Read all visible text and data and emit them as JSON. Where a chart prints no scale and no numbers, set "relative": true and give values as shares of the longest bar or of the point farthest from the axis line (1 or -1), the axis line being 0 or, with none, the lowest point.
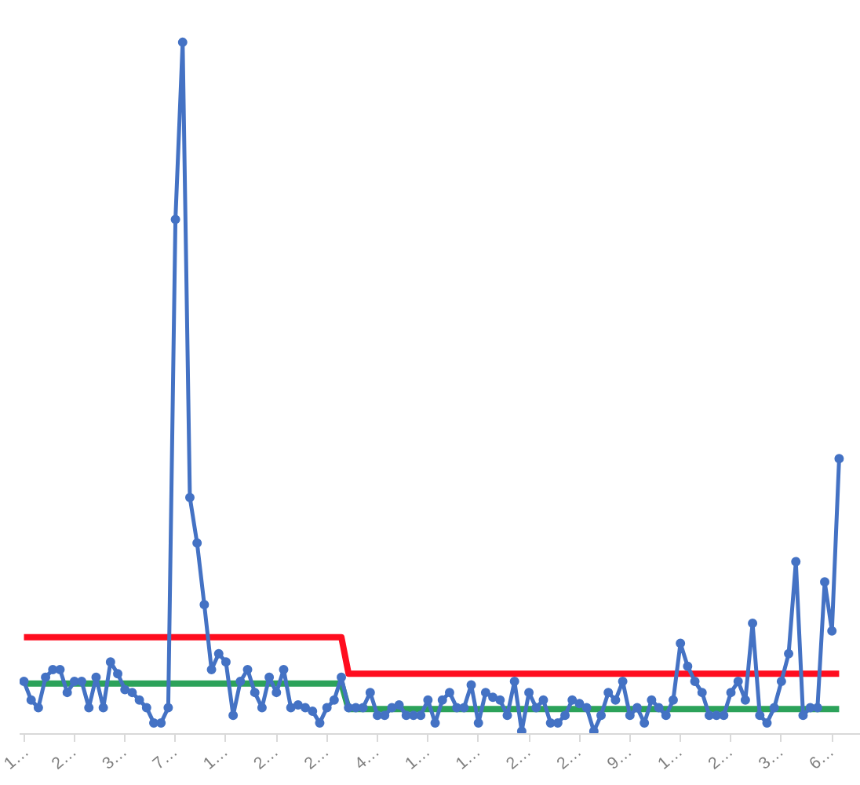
{
  "chart_data": {
    "type": "line",
    "relative": true,
    "grid": false,
    "categories": [
      "1…",
      null,
      null,
      null,
      null,
      null,
      null,
      "2…",
      null,
      null,
      null,
      null,
      null,
      null,
      "3…",
      null,
      null,
      null,
      null,
      null,
      null,
      "7…",
      null,
      null,
      null,
      null,
      null,
      null,
      "1…",
      null,
      null,
      null,
      null,
      null,
      null,
      "2…",
      null,
      null,
      null,
      null,
      null,
      null,
      "2…",
      null,
      null,
      null,
      null,
      null,
      null,
      "4…",
      null,
      null,
      null,
      null,
      null,
      null,
      "1…",
      null,
      null,
      null,
      null,
      null,
      null,
      "1…",
      null,
      null,
      null,
      null,
      null,
      null,
      "2…",
      null,
      null,
      null,
      null,
      null,
      null,
      "2…",
      null,
      null,
      null,
      null,
      null,
      null,
      "9…",
      null,
      null,
      null,
      null,
      null,
      null,
      "1…",
      null,
      null,
      null,
      null,
      null,
      null,
      "2…",
      null,
      null,
      null,
      null,
      null,
      null,
      "3…",
      null,
      null,
      null,
      null,
      null,
      null,
      "6…",
      null
    ],
    "series": [
      {
        "color": "#ff0d1f",
        "marker": "none",
        "values": [
          0.14,
          0.14,
          0.14,
          0.14,
          0.14,
          0.14,
          0.14,
          0.14,
          0.14,
          0.14,
          0.14,
          0.14,
          0.14,
          0.14,
          0.14,
          0.14,
          0.14,
          0.14,
          0.14,
          0.14,
          0.14,
          0.14,
          0.14,
          0.14,
          0.14,
          0.14,
          0.14,
          0.14,
          0.14,
          0.14,
          0.14,
          0.14,
          0.14,
          0.14,
          0.14,
          0.14,
          0.14,
          0.14,
          0.14,
          0.14,
          0.14,
          0.14,
          0.14,
          0.14,
          0.14,
          0.087,
          0.087,
          0.087,
          0.087,
          0.087,
          0.087,
          0.087,
          0.087,
          0.087,
          0.087,
          0.087,
          0.087,
          0.087,
          0.087,
          0.087,
          0.087,
          0.087,
          0.087,
          0.087,
          0.087,
          0.087,
          0.087,
          0.087,
          0.087,
          0.087,
          0.087,
          0.087,
          0.087,
          0.087,
          0.087,
          0.087,
          0.087,
          0.087,
          0.087,
          0.087,
          0.087,
          0.087,
          0.087,
          0.087,
          0.087,
          0.087,
          0.087,
          0.087,
          0.087,
          0.087,
          0.087,
          0.087,
          0.087,
          0.087,
          0.087,
          0.087,
          0.087,
          0.087,
          0.087,
          0.087,
          0.087,
          0.087,
          0.087,
          0.087,
          0.087,
          0.087,
          0.087,
          0.087,
          0.087,
          0.087,
          0.087,
          0.087,
          0.087,
          0.087
        ]
      },
      {
        "color": "#2ca25a",
        "marker": "none",
        "values": [
          0.073,
          0.073,
          0.073,
          0.073,
          0.073,
          0.073,
          0.073,
          0.073,
          0.073,
          0.073,
          0.073,
          0.073,
          0.073,
          0.073,
          0.073,
          0.073,
          0.073,
          0.073,
          0.073,
          0.073,
          0.073,
          0.073,
          0.073,
          0.073,
          0.073,
          0.073,
          0.073,
          0.073,
          0.073,
          0.073,
          0.073,
          0.073,
          0.073,
          0.073,
          0.073,
          0.073,
          0.073,
          0.073,
          0.073,
          0.073,
          0.073,
          0.073,
          0.073,
          0.073,
          0.073,
          0.036,
          0.036,
          0.036,
          0.036,
          0.036,
          0.036,
          0.036,
          0.036,
          0.036,
          0.036,
          0.036,
          0.036,
          0.036,
          0.036,
          0.036,
          0.036,
          0.036,
          0.036,
          0.036,
          0.036,
          0.036,
          0.036,
          0.036,
          0.036,
          0.036,
          0.036,
          0.036,
          0.036,
          0.036,
          0.036,
          0.036,
          0.036,
          0.036,
          0.036,
          0.036,
          0.036,
          0.036,
          0.036,
          0.036,
          0.036,
          0.036,
          0.036,
          0.036,
          0.036,
          0.036,
          0.036,
          0.036,
          0.036,
          0.036,
          0.036,
          0.036,
          0.036,
          0.036,
          0.036,
          0.036,
          0.036,
          0.036,
          0.036,
          0.036,
          0.036,
          0.036,
          0.036,
          0.036,
          0.036,
          0.036,
          0.036,
          0.036,
          0.036,
          0.036
        ]
      },
      {
        "color": "#4472c4",
        "marker": "circle",
        "values": [
          0.076,
          0.049,
          0.038,
          0.082,
          0.093,
          0.093,
          0.06,
          0.076,
          0.076,
          0.038,
          0.082,
          0.038,
          0.104,
          0.087,
          0.064,
          0.06,
          0.049,
          0.038,
          0.016,
          0.016,
          0.038,
          0.744,
          1,
          0.342,
          0.276,
          0.187,
          0.093,
          0.116,
          0.104,
          0.027,
          0.076,
          0.093,
          0.06,
          0.038,
          0.082,
          0.06,
          0.093,
          0.038,
          0.042,
          0.038,
          0.033,
          0.016,
          0.038,
          0.049,
          0.082,
          0.038,
          0.038,
          0.038,
          0.06,
          0.027,
          0.027,
          0.038,
          0.042,
          0.027,
          0.027,
          0.027,
          0.049,
          0.016,
          0.049,
          0.06,
          0.038,
          0.038,
          0.071,
          0.016,
          0.06,
          0.053,
          0.049,
          0.027,
          0.076,
          0.004,
          0.06,
          0.038,
          0.049,
          0.016,
          0.016,
          0.027,
          0.049,
          0.044,
          0.038,
          0.004,
          0.027,
          0.06,
          0.049,
          0.076,
          0.027,
          0.038,
          0.016,
          0.049,
          0.038,
          0.027,
          0.049,
          0.131,
          0.098,
          0.076,
          0.06,
          0.027,
          0.027,
          0.027,
          0.06,
          0.076,
          0.049,
          0.16,
          0.027,
          0.016,
          0.038,
          0.076,
          0.116,
          0.249,
          0.027,
          0.038,
          0.038,
          0.22,
          0.149,
          0.398
        ]
      }
    ]
  }
}
